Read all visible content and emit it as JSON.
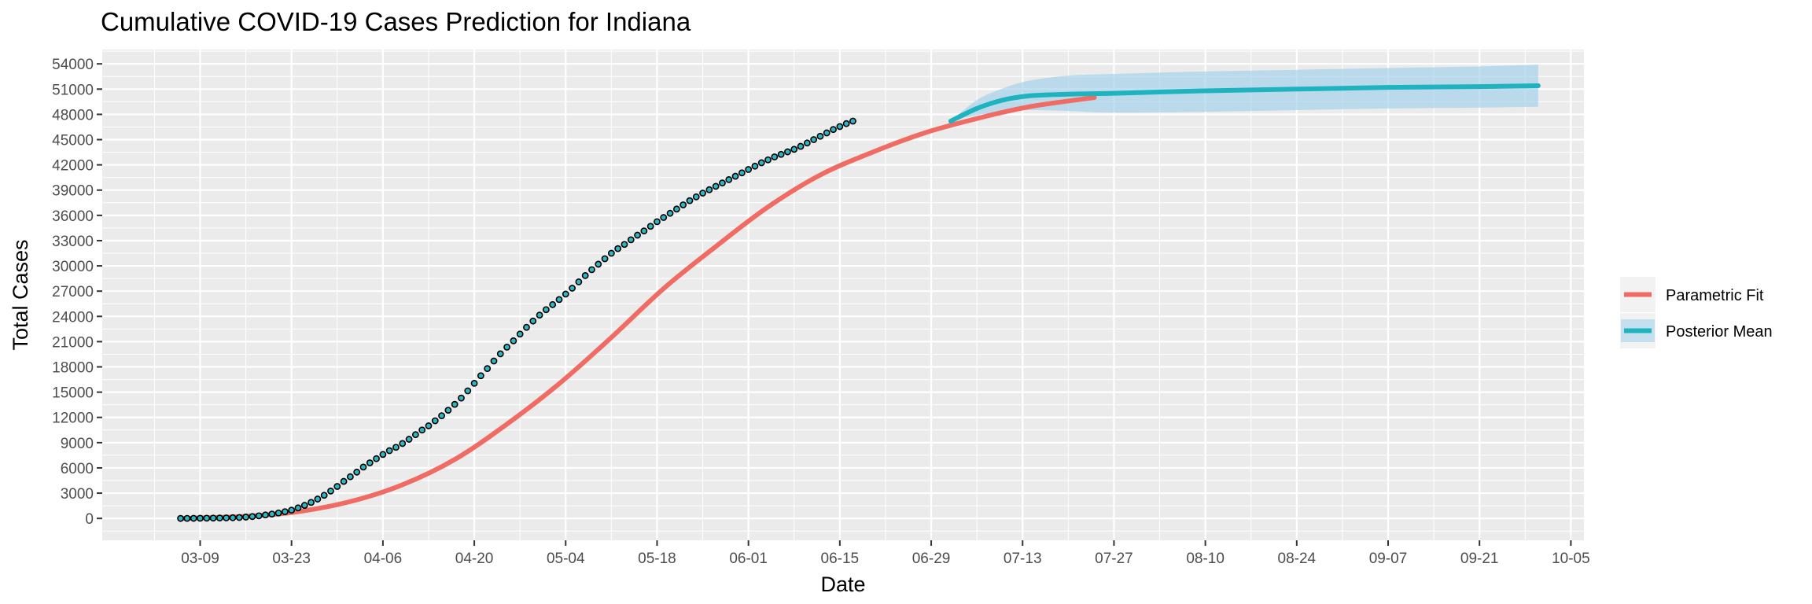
{
  "chart_data": {
    "type": "line",
    "title": "Cumulative COVID-19 Cases Prediction for Indiana",
    "xlabel": "Date",
    "ylabel": "Total Cases",
    "x_ticks": [
      "03-09",
      "03-23",
      "04-06",
      "04-20",
      "05-04",
      "05-18",
      "06-01",
      "06-15",
      "06-29",
      "07-13",
      "07-27",
      "08-10",
      "08-24",
      "09-07",
      "09-21",
      "10-05"
    ],
    "x_range": [
      "2020-02-23",
      "2020-10-07"
    ],
    "y_ticks": [
      0,
      3000,
      6000,
      9000,
      12000,
      15000,
      18000,
      21000,
      24000,
      27000,
      30000,
      33000,
      36000,
      39000,
      42000,
      45000,
      48000,
      51000,
      54000
    ],
    "ylim": [
      -2600,
      55700
    ],
    "grid": true,
    "legend_position": "right",
    "colors": {
      "parametric_fit": "#f06b63",
      "posterior_mean": "#1eb3be",
      "band": "#9fd1ec",
      "points_fill": "#2bb8c4",
      "points_stroke": "#000000",
      "panel": "#ebebeb",
      "grid": "#ffffff"
    },
    "legend": [
      {
        "label": "Parametric Fit",
        "color": "#f06b63"
      },
      {
        "label": "Posterior Mean",
        "color": "#1eb3be"
      }
    ],
    "observed": {
      "start_date": "2020-03-06",
      "values": [
        0,
        6,
        12,
        20,
        30,
        40,
        50,
        62,
        80,
        110,
        160,
        220,
        310,
        410,
        520,
        650,
        800,
        980,
        1250,
        1550,
        1900,
        2300,
        2750,
        3250,
        3800,
        4400,
        4950,
        5500,
        6100,
        6600,
        7100,
        7600,
        8050,
        8450,
        8900,
        9400,
        9950,
        10500,
        11000,
        11600,
        12200,
        12850,
        13550,
        14300,
        15150,
        16050,
        16950,
        17800,
        18700,
        19550,
        20350,
        21100,
        21900,
        22700,
        23450,
        24150,
        24800,
        25400,
        26000,
        26650,
        27350,
        28100,
        28850,
        29550,
        30200,
        30850,
        31500,
        32050,
        32550,
        33100,
        33650,
        34150,
        34700,
        35250,
        35750,
        36250,
        36750,
        37250,
        37750,
        38200,
        38650,
        39050,
        39450,
        39850,
        40250,
        40650,
        41050,
        41450,
        41850,
        42250,
        42600,
        42950,
        43250,
        43550,
        43850,
        44200,
        44600,
        45000,
        45400,
        45800,
        46200,
        46550,
        46900,
        47200
      ]
    },
    "series": [
      {
        "name": "Parametric Fit",
        "x": [
          "2020-03-06",
          "2020-03-16",
          "2020-03-24",
          "2020-04-01",
          "2020-04-09",
          "2020-04-17",
          "2020-04-25",
          "2020-05-03",
          "2020-05-11",
          "2020-05-19",
          "2020-05-27",
          "2020-06-04",
          "2020-06-12",
          "2020-06-20",
          "2020-06-28",
          "2020-07-06",
          "2020-07-14",
          "2020-07-24"
        ],
        "y": [
          0,
          250,
          800,
          2000,
          4000,
          7000,
          11200,
          16000,
          21500,
          27300,
          32300,
          37000,
          40800,
          43500,
          45800,
          47500,
          48900,
          50000
        ]
      },
      {
        "name": "Posterior Mean",
        "x": [
          "2020-07-02",
          "2020-07-06",
          "2020-07-10",
          "2020-07-14",
          "2020-07-20",
          "2020-07-27",
          "2020-08-10",
          "2020-08-24",
          "2020-09-07",
          "2020-09-21",
          "2020-09-30"
        ],
        "y": [
          47200,
          48700,
          49700,
          50200,
          50400,
          50500,
          50800,
          51000,
          51200,
          51300,
          51400
        ]
      }
    ],
    "band": {
      "x": [
        "2020-07-02",
        "2020-07-06",
        "2020-07-10",
        "2020-07-14",
        "2020-07-20",
        "2020-07-27",
        "2020-08-10",
        "2020-08-24",
        "2020-09-07",
        "2020-09-21",
        "2020-09-30"
      ],
      "lower": [
        47200,
        47900,
        48300,
        48500,
        48400,
        48200,
        48300,
        48500,
        48700,
        48800,
        48900
      ],
      "upper": [
        47200,
        49700,
        51100,
        52000,
        52600,
        52800,
        53100,
        53300,
        53500,
        53700,
        53900
      ]
    }
  }
}
